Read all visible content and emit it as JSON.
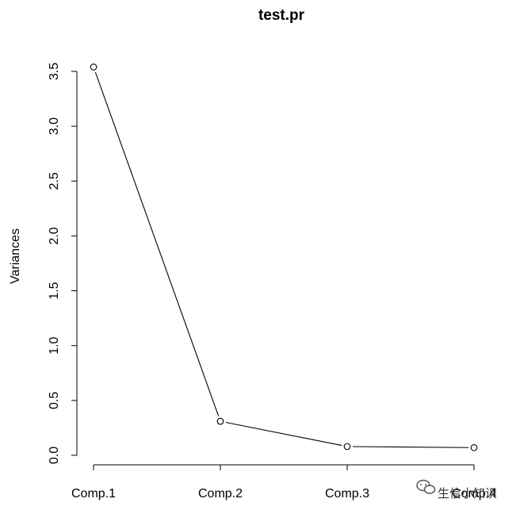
{
  "chart_data": {
    "type": "line",
    "title": "test.pr",
    "xlabel": "",
    "ylabel": "Variances",
    "categories": [
      "Comp.1",
      "Comp.2",
      "Comp.3",
      "Comp.4"
    ],
    "category_labels_shown": [
      "Comp.1",
      "Comp.2",
      "Comp.3",
      "Comp.4"
    ],
    "values": [
      3.54,
      0.31,
      0.08,
      0.07
    ],
    "ylim": [
      0,
      3.5
    ],
    "yticks": [
      "0.0",
      "0.5",
      "1.0",
      "1.5",
      "2.0",
      "2.5",
      "3.0",
      "3.5"
    ],
    "grid": false,
    "legend": "none",
    "marker": "open-circle"
  },
  "watermark": {
    "text": "生信小知识",
    "icon": "wechat-icon"
  }
}
